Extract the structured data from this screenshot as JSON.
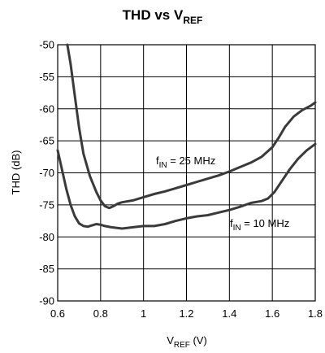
{
  "chart_data": {
    "type": "line",
    "title": {
      "base": "THD vs V",
      "sub": "REF"
    },
    "xlabel": {
      "base": "V",
      "sub": "REF",
      "unit": " (V)"
    },
    "ylabel": "THD (dB)",
    "xlim": [
      0.6,
      1.8
    ],
    "ylim": [
      -90,
      -50
    ],
    "xticks": [
      "0.6",
      "0.8",
      "1",
      "1.2",
      "1.4",
      "1.6",
      "1.8"
    ],
    "yticks": [
      "-50",
      "-55",
      "-60",
      "-65",
      "-70",
      "-75",
      "-80",
      "-85",
      "-90"
    ],
    "grid": true,
    "line_color": "#3a3a3a",
    "series": [
      {
        "name": "f IN = 25 MHz",
        "label": {
          "base": "f",
          "sub": "IN",
          "rest": " = 25 MHz"
        },
        "x": [
          0.645,
          0.66,
          0.68,
          0.7,
          0.72,
          0.75,
          0.78,
          0.8,
          0.82,
          0.84,
          0.86,
          0.88,
          0.9,
          0.95,
          1.0,
          1.05,
          1.1,
          1.15,
          1.2,
          1.25,
          1.3,
          1.35,
          1.4,
          1.45,
          1.5,
          1.55,
          1.6,
          1.63,
          1.66,
          1.7,
          1.74,
          1.78,
          1.8
        ],
        "y": [
          -50,
          -53,
          -58,
          -63,
          -67,
          -70.5,
          -73,
          -74.3,
          -75.2,
          -75.5,
          -75.2,
          -74.8,
          -74.6,
          -74.3,
          -73.8,
          -73.3,
          -72.9,
          -72.4,
          -71.9,
          -71.4,
          -70.9,
          -70.4,
          -69.8,
          -69.1,
          -68.4,
          -67.5,
          -66.0,
          -64.5,
          -62.8,
          -61.2,
          -60.2,
          -59.5,
          -59.0
        ]
      },
      {
        "name": "f IN = 10 MHz",
        "label": {
          "base": "f",
          "sub": "IN",
          "rest": " = 10 MHz"
        },
        "x": [
          0.6,
          0.62,
          0.64,
          0.66,
          0.68,
          0.7,
          0.72,
          0.74,
          0.76,
          0.78,
          0.8,
          0.82,
          0.85,
          0.9,
          0.95,
          1.0,
          1.05,
          1.1,
          1.15,
          1.2,
          1.25,
          1.3,
          1.35,
          1.4,
          1.45,
          1.5,
          1.55,
          1.58,
          1.61,
          1.64,
          1.68,
          1.72,
          1.76,
          1.8
        ],
        "y": [
          -66.5,
          -69.5,
          -72.5,
          -75.0,
          -76.8,
          -77.9,
          -78.3,
          -78.4,
          -78.2,
          -78.0,
          -78.1,
          -78.3,
          -78.5,
          -78.7,
          -78.5,
          -78.3,
          -78.3,
          -78.0,
          -77.5,
          -77.1,
          -76.8,
          -76.6,
          -76.2,
          -75.8,
          -75.3,
          -74.7,
          -74.4,
          -74.0,
          -73.0,
          -71.5,
          -69.5,
          -67.8,
          -66.5,
          -65.5
        ]
      }
    ]
  }
}
